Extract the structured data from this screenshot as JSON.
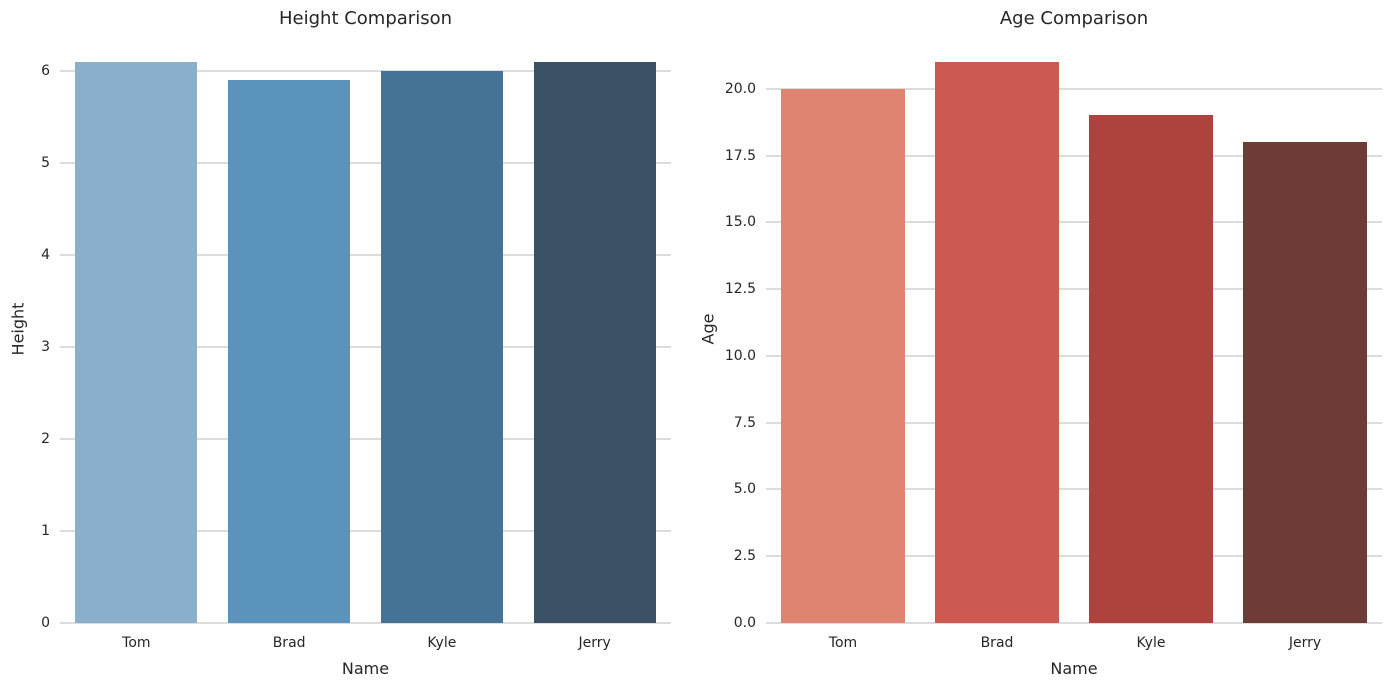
{
  "figure": {
    "background": "#ffffff",
    "text_color": "#262626",
    "grid_color": "#dcdcdc"
  },
  "chart_data": [
    {
      "type": "bar",
      "title": "Height Comparison",
      "xlabel": "Name",
      "ylabel": "Height",
      "categories": [
        "Tom",
        "Brad",
        "Kyle",
        "Jerry"
      ],
      "values": [
        6.1,
        5.9,
        6.0,
        6.1
      ],
      "bar_colors": [
        "#89afcb",
        "#5b93bc",
        "#447396",
        "#3a5166"
      ],
      "ylim": [
        0,
        6.405
      ],
      "yticks": [
        0,
        1,
        2,
        3,
        4,
        5,
        6
      ],
      "ytick_labels": [
        "0",
        "1",
        "2",
        "3",
        "4",
        "5",
        "6"
      ],
      "grid": true,
      "legend": null
    },
    {
      "type": "bar",
      "title": "Age Comparison",
      "xlabel": "Name",
      "ylabel": "Age",
      "categories": [
        "Tom",
        "Brad",
        "Kyle",
        "Jerry"
      ],
      "values": [
        20,
        21,
        19,
        18
      ],
      "bar_colors": [
        "#e08472",
        "#cd5a50",
        "#ae433e",
        "#6f3b37"
      ],
      "ylim": [
        0,
        22.05
      ],
      "yticks": [
        0,
        2.5,
        5,
        7.5,
        10,
        12.5,
        15,
        17.5,
        20
      ],
      "ytick_labels": [
        "0.0",
        "2.5",
        "5.0",
        "7.5",
        "10.0",
        "12.5",
        "15.0",
        "17.5",
        "20.0"
      ],
      "grid": true,
      "legend": null
    }
  ]
}
